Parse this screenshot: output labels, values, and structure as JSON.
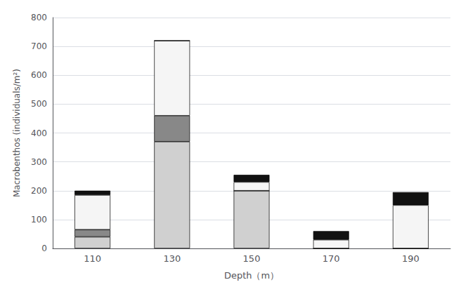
{
  "chart_data": {
    "type": "bar",
    "stacked": true,
    "categories": [
      "110",
      "130",
      "150",
      "170",
      "190"
    ],
    "series": [
      {
        "color": "#d0d0d0",
        "values": [
          40,
          370,
          200,
          0,
          0
        ]
      },
      {
        "color": "#888888",
        "values": [
          25,
          90,
          0,
          0,
          0
        ]
      },
      {
        "color": "#f5f5f5",
        "values": [
          120,
          260,
          30,
          30,
          150
        ]
      },
      {
        "color": "#111111",
        "values": [
          15,
          0,
          25,
          30,
          45
        ]
      }
    ],
    "xlabel": "Depth（m）",
    "ylabel": "Macrobenthos (individuals/m²)",
    "ylim": [
      0,
      800
    ],
    "yticks": [
      0,
      100,
      200,
      300,
      400,
      500,
      600,
      700,
      800
    ],
    "grid": true
  }
}
